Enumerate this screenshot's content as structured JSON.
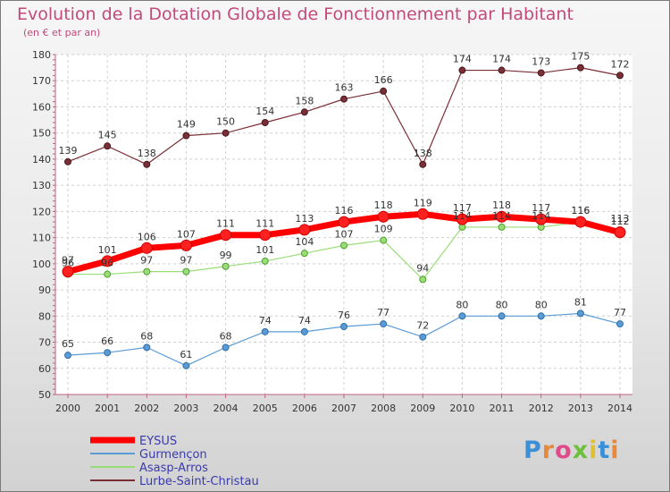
{
  "chart_data": {
    "type": "line",
    "title": "Evolution de la Dotation Globale de Fonctionnement par Habitant",
    "subtitle": "(en € et par an)",
    "x": [
      "2000",
      "2001",
      "2002",
      "2003",
      "2004",
      "2005",
      "2006",
      "2007",
      "2008",
      "2009",
      "2010",
      "2011",
      "2012",
      "2013",
      "2014"
    ],
    "ylim": [
      50,
      180
    ],
    "yticks": [
      50,
      60,
      70,
      80,
      90,
      100,
      110,
      120,
      130,
      140,
      150,
      160,
      170,
      180
    ],
    "grid": true,
    "legend_position": "bottom-left",
    "series": [
      {
        "name": "EYSUS",
        "color": "#ff0000",
        "values": [
          97,
          101,
          106,
          107,
          111,
          111,
          113,
          116,
          118,
          119,
          117,
          118,
          117,
          116,
          112
        ]
      },
      {
        "name": "Gurmençon",
        "color": "#5b9bd5",
        "values": [
          65,
          66,
          68,
          61,
          68,
          74,
          74,
          76,
          77,
          72,
          80,
          80,
          80,
          81,
          77
        ]
      },
      {
        "name": "Asasp-Arros",
        "color": "#99dd77",
        "values": [
          96,
          96,
          97,
          97,
          99,
          101,
          104,
          107,
          109,
          94,
          114,
          114,
          114,
          116,
          113
        ]
      },
      {
        "name": "Lurbe-Saint-Christau",
        "color": "#7a2e36",
        "values": [
          139,
          145,
          138,
          149,
          150,
          154,
          158,
          163,
          166,
          138,
          174,
          174,
          173,
          175,
          172
        ]
      }
    ]
  },
  "logo": {
    "text": "Proxiti",
    "letters": [
      "P",
      "r",
      "o",
      "x",
      "i",
      "t",
      "i"
    ],
    "colors": [
      "#3a8fd6",
      "#e8883a",
      "#e04a8a",
      "#6fbf3f",
      "#e0c030",
      "#3a8fd6",
      "#e8883a"
    ]
  }
}
